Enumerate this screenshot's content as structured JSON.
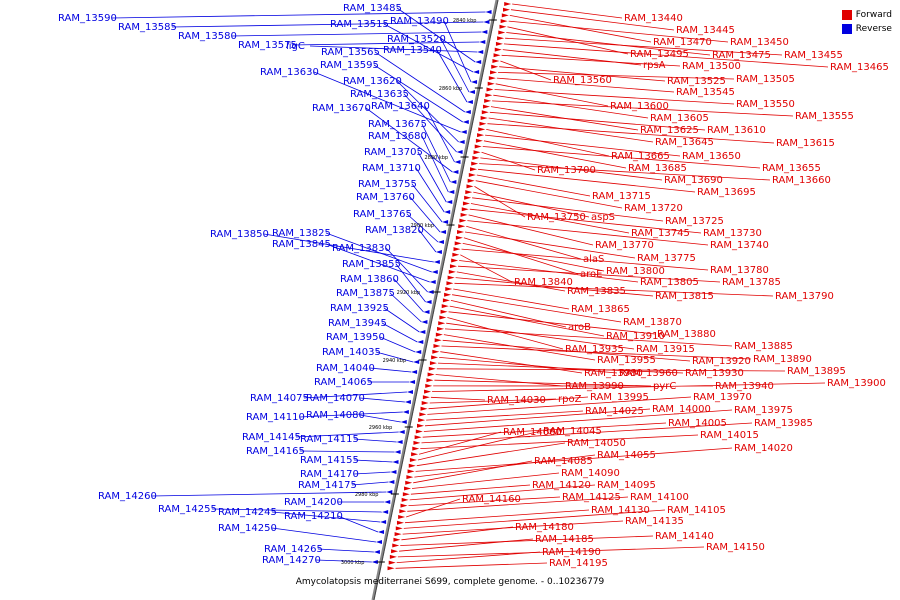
{
  "legend": {
    "forward_label": "Forward",
    "reverse_label": "Reverse",
    "forward_color": "#e00000",
    "reverse_color": "#0000e0"
  },
  "caption": "Amycolatopsis mediterranei S699, complete genome. - 0..10236779",
  "ticks": [
    "2840 kbp",
    "2860 kbp",
    "2880 kbp",
    "2900 kbp",
    "2920 kbp",
    "2940 kbp",
    "2960 kbp",
    "2980 kbp",
    "3000 kbp"
  ],
  "reverse_genes": [
    {
      "name": "RAM_13590"
    },
    {
      "name": "RAM_13585"
    },
    {
      "name": "RAM_13580"
    },
    {
      "name": "RAM_13575"
    },
    {
      "name": "ligC"
    },
    {
      "name": "RAM_13485"
    },
    {
      "name": "RAM_13515"
    },
    {
      "name": "RAM_13490"
    },
    {
      "name": "RAM_13520"
    },
    {
      "name": "RAM_13540"
    },
    {
      "name": "RAM_13565"
    },
    {
      "name": "RAM_13595"
    },
    {
      "name": "RAM_13630"
    },
    {
      "name": "RAM_13620"
    },
    {
      "name": "RAM_13635"
    },
    {
      "name": "RAM_13640"
    },
    {
      "name": "RAM_13670"
    },
    {
      "name": "RAM_13675"
    },
    {
      "name": "RAM_13680"
    },
    {
      "name": "RAM_13705"
    },
    {
      "name": "RAM_13710"
    },
    {
      "name": "RAM_13755"
    },
    {
      "name": "RAM_13760"
    },
    {
      "name": "RAM_13765"
    },
    {
      "name": "RAM_13820"
    },
    {
      "name": "RAM_13850"
    },
    {
      "name": "RAM_13825"
    },
    {
      "name": "RAM_13845"
    },
    {
      "name": "RAM_13830"
    },
    {
      "name": "RAM_13855"
    },
    {
      "name": "RAM_13860"
    },
    {
      "name": "RAM_13875"
    },
    {
      "name": "RAM_13925"
    },
    {
      "name": "RAM_13945"
    },
    {
      "name": "RAM_13950"
    },
    {
      "name": "RAM_14035"
    },
    {
      "name": "RAM_14040"
    },
    {
      "name": "RAM_14065"
    },
    {
      "name": "RAM_14075"
    },
    {
      "name": "RAM_14070"
    },
    {
      "name": "RAM_14110"
    },
    {
      "name": "RAM_14080"
    },
    {
      "name": "RAM_14145"
    },
    {
      "name": "RAM_14115"
    },
    {
      "name": "RAM_14165"
    },
    {
      "name": "RAM_14155"
    },
    {
      "name": "RAM_14170"
    },
    {
      "name": "RAM_14175"
    },
    {
      "name": "RAM_14260"
    },
    {
      "name": "RAM_14200"
    },
    {
      "name": "RAM_14255"
    },
    {
      "name": "RAM_14245"
    },
    {
      "name": "RAM_14210"
    },
    {
      "name": "RAM_14250"
    },
    {
      "name": "RAM_14265"
    },
    {
      "name": "RAM_14270"
    }
  ],
  "forward_genes": [
    {
      "name": "RAM_13440"
    },
    {
      "name": "RAM_13445"
    },
    {
      "name": "RAM_13470"
    },
    {
      "name": "RAM_13450"
    },
    {
      "name": "RAM_13495"
    },
    {
      "name": "RAM_13475"
    },
    {
      "name": "RAM_13455"
    },
    {
      "name": "RAM_13465"
    },
    {
      "name": "rpsA"
    },
    {
      "name": "RAM_13500"
    },
    {
      "name": "RAM_13560"
    },
    {
      "name": "RAM_13525"
    },
    {
      "name": "RAM_13505"
    },
    {
      "name": "RAM_13545"
    },
    {
      "name": "RAM_13600"
    },
    {
      "name": "RAM_13550"
    },
    {
      "name": "RAM_13605"
    },
    {
      "name": "RAM_13555"
    },
    {
      "name": "RAM_13625"
    },
    {
      "name": "RAM_13610"
    },
    {
      "name": "RAM_13645"
    },
    {
      "name": "RAM_13615"
    },
    {
      "name": "RAM_13665"
    },
    {
      "name": "RAM_13650"
    },
    {
      "name": "RAM_13685"
    },
    {
      "name": "RAM_13655"
    },
    {
      "name": "RAM_13700"
    },
    {
      "name": "RAM_13690"
    },
    {
      "name": "RAM_13660"
    },
    {
      "name": "RAM_13695"
    },
    {
      "name": "RAM_13715"
    },
    {
      "name": "RAM_13720"
    },
    {
      "name": "RAM_13750"
    },
    {
      "name": "aspS"
    },
    {
      "name": "RAM_13725"
    },
    {
      "name": "RAM_13745"
    },
    {
      "name": "RAM_13730"
    },
    {
      "name": "RAM_13770"
    },
    {
      "name": "RAM_13740"
    },
    {
      "name": "alaS"
    },
    {
      "name": "RAM_13775"
    },
    {
      "name": "aroE"
    },
    {
      "name": "RAM_13800"
    },
    {
      "name": "RAM_13780"
    },
    {
      "name": "RAM_13840"
    },
    {
      "name": "RAM_13805"
    },
    {
      "name": "RAM_13785"
    },
    {
      "name": "RAM_13835"
    },
    {
      "name": "RAM_13815"
    },
    {
      "name": "RAM_13790"
    },
    {
      "name": "RAM_13865"
    },
    {
      "name": "RAM_13870"
    },
    {
      "name": "aroB"
    },
    {
      "name": "RAM_13910"
    },
    {
      "name": "RAM_13880"
    },
    {
      "name": "RAM_13935"
    },
    {
      "name": "RAM_13915"
    },
    {
      "name": "RAM_13885"
    },
    {
      "name": "RAM_13955"
    },
    {
      "name": "RAM_13920"
    },
    {
      "name": "RAM_13890"
    },
    {
      "name": "RAM_13980"
    },
    {
      "name": "RAM_13960"
    },
    {
      "name": "RAM_13930"
    },
    {
      "name": "RAM_13895"
    },
    {
      "name": "RAM_13990"
    },
    {
      "name": "pyrC"
    },
    {
      "name": "RAM_13940"
    },
    {
      "name": "RAM_13900"
    },
    {
      "name": "RAM_14030"
    },
    {
      "name": "rpoZ"
    },
    {
      "name": "RAM_13995"
    },
    {
      "name": "RAM_13970"
    },
    {
      "name": "RAM_14025"
    },
    {
      "name": "RAM_14000"
    },
    {
      "name": "RAM_13975"
    },
    {
      "name": "RAM_14005"
    },
    {
      "name": "RAM_13985"
    },
    {
      "name": "RAM_14015"
    },
    {
      "name": "RAM_14060"
    },
    {
      "name": "RAM_14045"
    },
    {
      "name": "RAM_14050"
    },
    {
      "name": "RAM_14020"
    },
    {
      "name": "RAM_14055"
    },
    {
      "name": "RAM_14085"
    },
    {
      "name": "RAM_14090"
    },
    {
      "name": "RAM_14120"
    },
    {
      "name": "RAM_14095"
    },
    {
      "name": "RAM_14125"
    },
    {
      "name": "RAM_14100"
    },
    {
      "name": "RAM_14160"
    },
    {
      "name": "RAM_14130"
    },
    {
      "name": "RAM_14105"
    },
    {
      "name": "RAM_14135"
    },
    {
      "name": "RAM_14180"
    },
    {
      "name": "RAM_14140"
    },
    {
      "name": "RAM_14185"
    },
    {
      "name": "RAM_14150"
    },
    {
      "name": "RAM_14190"
    },
    {
      "name": "RAM_14195"
    }
  ]
}
